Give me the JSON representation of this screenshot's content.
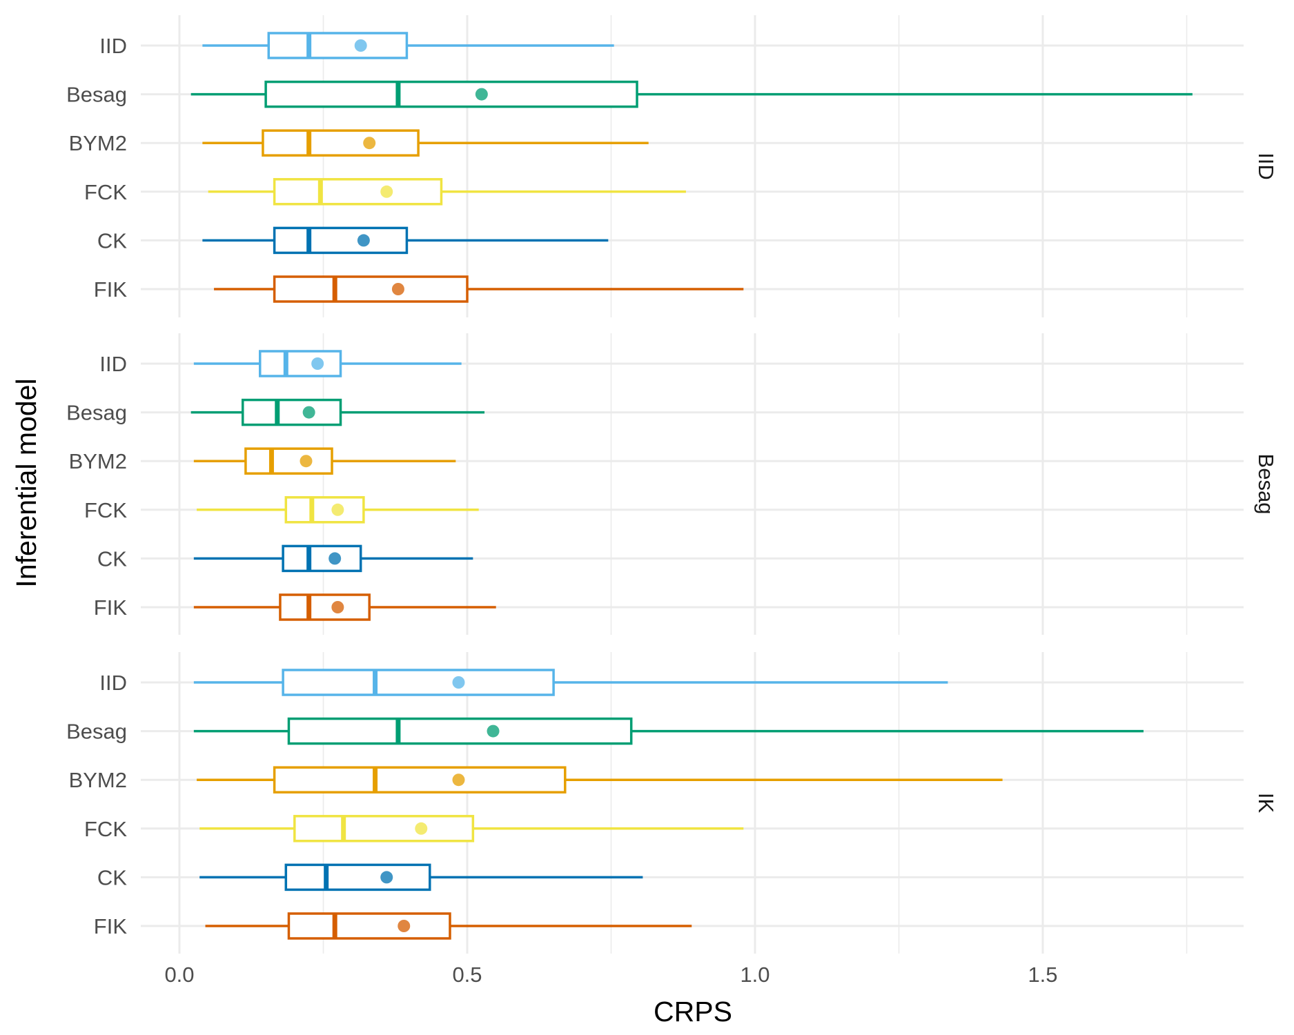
{
  "chart_data": {
    "type": "boxplot",
    "title": "",
    "xlabel": "CRPS",
    "ylabel": "Inferential model",
    "xlim": [
      -0.06,
      1.85
    ],
    "x_ticks": [
      0.0,
      0.5,
      1.0,
      1.5
    ],
    "x_tick_labels": [
      "0.0",
      "0.5",
      "1.0",
      "1.5"
    ],
    "grid": true,
    "categories": [
      "IID",
      "Besag",
      "BYM2",
      "FCK",
      "CK",
      "FIK"
    ],
    "colors": {
      "IID": "#56B4E9",
      "Besag": "#009E73",
      "BYM2": "#E69F00",
      "FCK": "#F0E442",
      "CK": "#0072B2",
      "FIK": "#D55E00"
    },
    "facets": [
      {
        "label": "IID",
        "boxes": [
          {
            "model": "IID",
            "min": 0.04,
            "q1": 0.155,
            "median": 0.225,
            "q3": 0.395,
            "max": 0.755,
            "mean": 0.315
          },
          {
            "model": "Besag",
            "min": 0.02,
            "q1": 0.15,
            "median": 0.38,
            "q3": 0.795,
            "max": 1.76,
            "mean": 0.525
          },
          {
            "model": "BYM2",
            "min": 0.04,
            "q1": 0.145,
            "median": 0.225,
            "q3": 0.415,
            "max": 0.815,
            "mean": 0.33
          },
          {
            "model": "FCK",
            "min": 0.05,
            "q1": 0.165,
            "median": 0.245,
            "q3": 0.455,
            "max": 0.88,
            "mean": 0.36
          },
          {
            "model": "CK",
            "min": 0.04,
            "q1": 0.165,
            "median": 0.225,
            "q3": 0.395,
            "max": 0.745,
            "mean": 0.32
          },
          {
            "model": "FIK",
            "min": 0.06,
            "q1": 0.165,
            "median": 0.27,
            "q3": 0.5,
            "max": 0.98,
            "mean": 0.38
          }
        ]
      },
      {
        "label": "Besag",
        "boxes": [
          {
            "model": "IID",
            "min": 0.025,
            "q1": 0.14,
            "median": 0.185,
            "q3": 0.28,
            "max": 0.49,
            "mean": 0.24
          },
          {
            "model": "Besag",
            "min": 0.02,
            "q1": 0.11,
            "median": 0.17,
            "q3": 0.28,
            "max": 0.53,
            "mean": 0.225
          },
          {
            "model": "BYM2",
            "min": 0.025,
            "q1": 0.115,
            "median": 0.16,
            "q3": 0.265,
            "max": 0.48,
            "mean": 0.22
          },
          {
            "model": "FCK",
            "min": 0.03,
            "q1": 0.185,
            "median": 0.23,
            "q3": 0.32,
            "max": 0.52,
            "mean": 0.275
          },
          {
            "model": "CK",
            "min": 0.025,
            "q1": 0.18,
            "median": 0.225,
            "q3": 0.315,
            "max": 0.51,
            "mean": 0.27
          },
          {
            "model": "FIK",
            "min": 0.025,
            "q1": 0.175,
            "median": 0.225,
            "q3": 0.33,
            "max": 0.55,
            "mean": 0.275
          }
        ]
      },
      {
        "label": "IK",
        "boxes": [
          {
            "model": "IID",
            "min": 0.025,
            "q1": 0.18,
            "median": 0.34,
            "q3": 0.65,
            "max": 1.335,
            "mean": 0.485
          },
          {
            "model": "Besag",
            "min": 0.025,
            "q1": 0.19,
            "median": 0.38,
            "q3": 0.785,
            "max": 1.675,
            "mean": 0.545
          },
          {
            "model": "BYM2",
            "min": 0.03,
            "q1": 0.165,
            "median": 0.34,
            "q3": 0.67,
            "max": 1.43,
            "mean": 0.485
          },
          {
            "model": "FCK",
            "min": 0.035,
            "q1": 0.2,
            "median": 0.285,
            "q3": 0.51,
            "max": 0.98,
            "mean": 0.42
          },
          {
            "model": "CK",
            "min": 0.035,
            "q1": 0.185,
            "median": 0.255,
            "q3": 0.435,
            "max": 0.805,
            "mean": 0.36
          },
          {
            "model": "FIK",
            "min": 0.045,
            "q1": 0.19,
            "median": 0.27,
            "q3": 0.47,
            "max": 0.89,
            "mean": 0.39
          }
        ]
      }
    ]
  }
}
